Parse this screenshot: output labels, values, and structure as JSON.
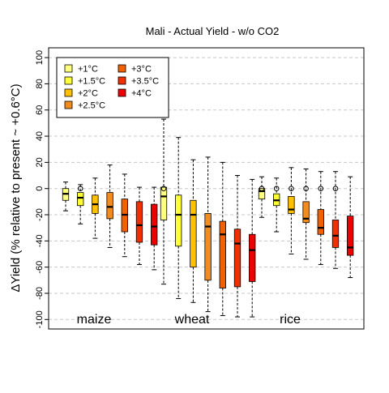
{
  "chart_data": {
    "type": "box",
    "title": "Mali - Actual Yield - w/o CO2",
    "ylabel": "ΔYield (% relative to present ~ +0.6°C)",
    "ylim": [
      -107,
      107
    ],
    "yticks": [
      -100,
      -80,
      -60,
      -40,
      -20,
      0,
      20,
      40,
      60,
      80,
      100
    ],
    "grid": "dashed-horizontal",
    "legend_position": "top-left",
    "groups": [
      "maize",
      "wheat",
      "rice"
    ],
    "series": [
      {
        "name": "+1°C",
        "color": "#FFFF80"
      },
      {
        "name": "+1.5°C",
        "color": "#FFFF33"
      },
      {
        "name": "+2°C",
        "color": "#FFC000"
      },
      {
        "name": "+2.5°C",
        "color": "#F28C1E"
      },
      {
        "name": "+3°C",
        "color": "#F26000"
      },
      {
        "name": "+3.5°C",
        "color": "#F03000"
      },
      {
        "name": "+4°C",
        "color": "#EE0000"
      }
    ],
    "boxes": [
      {
        "group": "maize",
        "series": "+1°C",
        "whisker_low": -17,
        "q1": -9,
        "median": -4,
        "q3": 0,
        "whisker_high": 5,
        "outliers": []
      },
      {
        "group": "maize",
        "series": "+1.5°C",
        "whisker_low": -27,
        "q1": -13,
        "median": -7,
        "q3": -3,
        "whisker_high": 3,
        "outliers": [
          0
        ]
      },
      {
        "group": "maize",
        "series": "+2°C",
        "whisker_low": -38,
        "q1": -19,
        "median": -12,
        "q3": -5,
        "whisker_high": 8,
        "outliers": []
      },
      {
        "group": "maize",
        "series": "+2.5°C",
        "whisker_low": -45,
        "q1": -23,
        "median": -14,
        "q3": -3,
        "whisker_high": 18,
        "outliers": []
      },
      {
        "group": "maize",
        "series": "+3°C",
        "whisker_low": -52,
        "q1": -33,
        "median": -20,
        "q3": -8,
        "whisker_high": 11,
        "outliers": []
      },
      {
        "group": "maize",
        "series": "+3.5°C",
        "whisker_low": -58,
        "q1": -41,
        "median": -28,
        "q3": -10,
        "whisker_high": 1,
        "outliers": []
      },
      {
        "group": "maize",
        "series": "+4°C",
        "whisker_low": -62,
        "q1": -43,
        "median": -29,
        "q3": -12,
        "whisker_high": 1,
        "outliers": []
      },
      {
        "group": "wheat",
        "series": "+1°C",
        "whisker_low": -73,
        "q1": -24,
        "median": -6,
        "q3": 1,
        "whisker_high": 53,
        "outliers": [
          0
        ]
      },
      {
        "group": "wheat",
        "series": "+1.5°C",
        "whisker_low": -84,
        "q1": -44,
        "median": -20,
        "q3": -5,
        "whisker_high": 39,
        "outliers": []
      },
      {
        "group": "wheat",
        "series": "+2°C",
        "whisker_low": -87,
        "q1": -60,
        "median": -20,
        "q3": -9,
        "whisker_high": 22,
        "outliers": []
      },
      {
        "group": "wheat",
        "series": "+2.5°C",
        "whisker_low": -94,
        "q1": -70,
        "median": -29,
        "q3": -19,
        "whisker_high": 24,
        "outliers": []
      },
      {
        "group": "wheat",
        "series": "+3°C",
        "whisker_low": -97,
        "q1": -76,
        "median": -35,
        "q3": -25,
        "whisker_high": 20,
        "outliers": []
      },
      {
        "group": "wheat",
        "series": "+3.5°C",
        "whisker_low": -98,
        "q1": -75,
        "median": -42,
        "q3": -31,
        "whisker_high": 10,
        "outliers": []
      },
      {
        "group": "wheat",
        "series": "+4°C",
        "whisker_low": -98,
        "q1": -71,
        "median": -47,
        "q3": -35,
        "whisker_high": 7,
        "outliers": []
      },
      {
        "group": "rice",
        "series": "+1°C",
        "whisker_low": -22,
        "q1": -8,
        "median": -2,
        "q3": 0,
        "whisker_high": 9,
        "outliers": [
          0
        ]
      },
      {
        "group": "rice",
        "series": "+1.5°C",
        "whisker_low": -33,
        "q1": -13,
        "median": -9,
        "q3": -4,
        "whisker_high": 8,
        "outliers": [
          0
        ]
      },
      {
        "group": "rice",
        "series": "+2°C",
        "whisker_low": -50,
        "q1": -19,
        "median": -16,
        "q3": -6,
        "whisker_high": 16,
        "outliers": [
          0
        ]
      },
      {
        "group": "rice",
        "series": "+2.5°C",
        "whisker_low": -54,
        "q1": -26,
        "median": -23,
        "q3": -10,
        "whisker_high": 15,
        "outliers": [
          0
        ]
      },
      {
        "group": "rice",
        "series": "+3°C",
        "whisker_low": -58,
        "q1": -35,
        "median": -30,
        "q3": -16,
        "whisker_high": 13,
        "outliers": [
          0
        ]
      },
      {
        "group": "rice",
        "series": "+3.5°C",
        "whisker_low": -61,
        "q1": -45,
        "median": -36,
        "q3": -24,
        "whisker_high": 13,
        "outliers": [
          0
        ]
      },
      {
        "group": "rice",
        "series": "+4°C",
        "whisker_low": -68,
        "q1": -51,
        "median": -45,
        "q3": -21,
        "whisker_high": 9,
        "outliers": []
      }
    ]
  }
}
